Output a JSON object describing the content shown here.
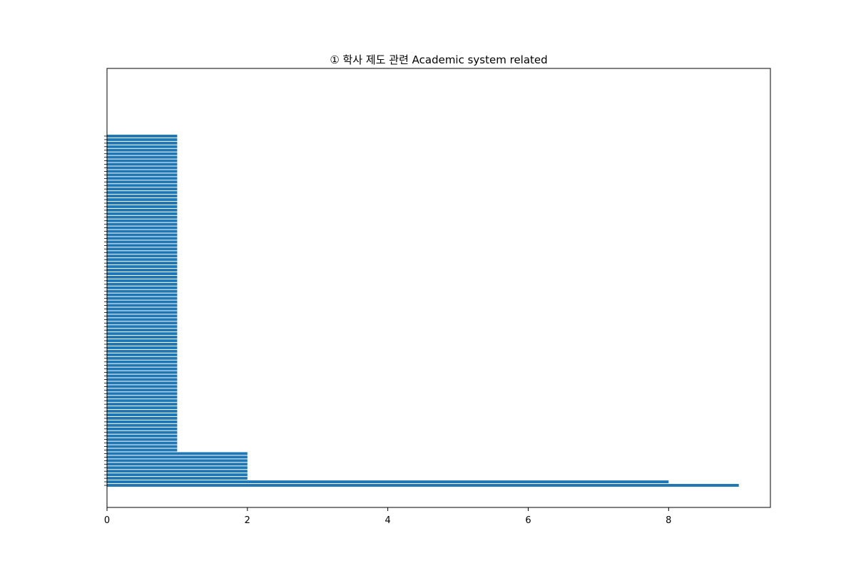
{
  "chart_data": {
    "type": "bar",
    "orientation": "horizontal",
    "title": "① 학사 제도 관련 Academic system related",
    "xlabel": "",
    "ylabel": "",
    "xlim": [
      0,
      9.45
    ],
    "x_ticks": [
      0,
      2,
      4,
      6,
      8
    ],
    "x_tick_labels": [
      "0",
      "2",
      "4",
      "6",
      "8"
    ],
    "bar_color": "#1f77b4",
    "grid": false,
    "legend": "none",
    "categories": [
      "",
      "",
      "",
      "",
      "",
      "",
      "",
      "",
      "",
      "",
      "",
      "",
      "",
      "",
      "",
      "",
      "",
      "",
      "",
      "",
      "",
      "",
      "",
      "",
      "",
      "",
      "",
      "",
      "",
      "",
      "",
      "",
      "",
      "",
      "",
      "",
      "",
      "",
      "",
      "",
      "",
      "",
      "",
      "",
      "",
      "",
      "",
      "",
      "",
      "",
      "",
      "",
      "",
      "",
      "",
      "",
      "",
      "",
      "",
      "",
      "",
      "",
      "",
      "",
      "",
      "",
      "",
      "",
      "",
      "",
      "",
      "",
      "",
      "",
      "",
      "",
      "",
      "",
      "",
      "",
      "",
      "",
      "",
      "",
      "",
      "",
      "",
      "",
      "",
      "",
      "",
      "",
      "",
      "",
      "",
      "",
      "",
      "",
      "",
      ""
    ],
    "values": [
      9,
      8,
      2,
      2,
      2,
      2,
      2,
      2,
      2,
      2,
      1,
      1,
      1,
      1,
      1,
      1,
      1,
      1,
      1,
      1,
      1,
      1,
      1,
      1,
      1,
      1,
      1,
      1,
      1,
      1,
      1,
      1,
      1,
      1,
      1,
      1,
      1,
      1,
      1,
      1,
      1,
      1,
      1,
      1,
      1,
      1,
      1,
      1,
      1,
      1,
      1,
      1,
      1,
      1,
      1,
      1,
      1,
      1,
      1,
      1,
      1,
      1,
      1,
      1,
      1,
      1,
      1,
      1,
      1,
      1,
      1,
      1,
      1,
      1,
      1,
      1,
      1,
      1,
      1,
      1,
      1,
      1,
      1,
      1,
      1,
      1,
      1,
      1,
      1,
      1,
      1,
      1,
      1,
      1,
      1,
      1,
      1,
      1,
      1,
      1
    ]
  }
}
